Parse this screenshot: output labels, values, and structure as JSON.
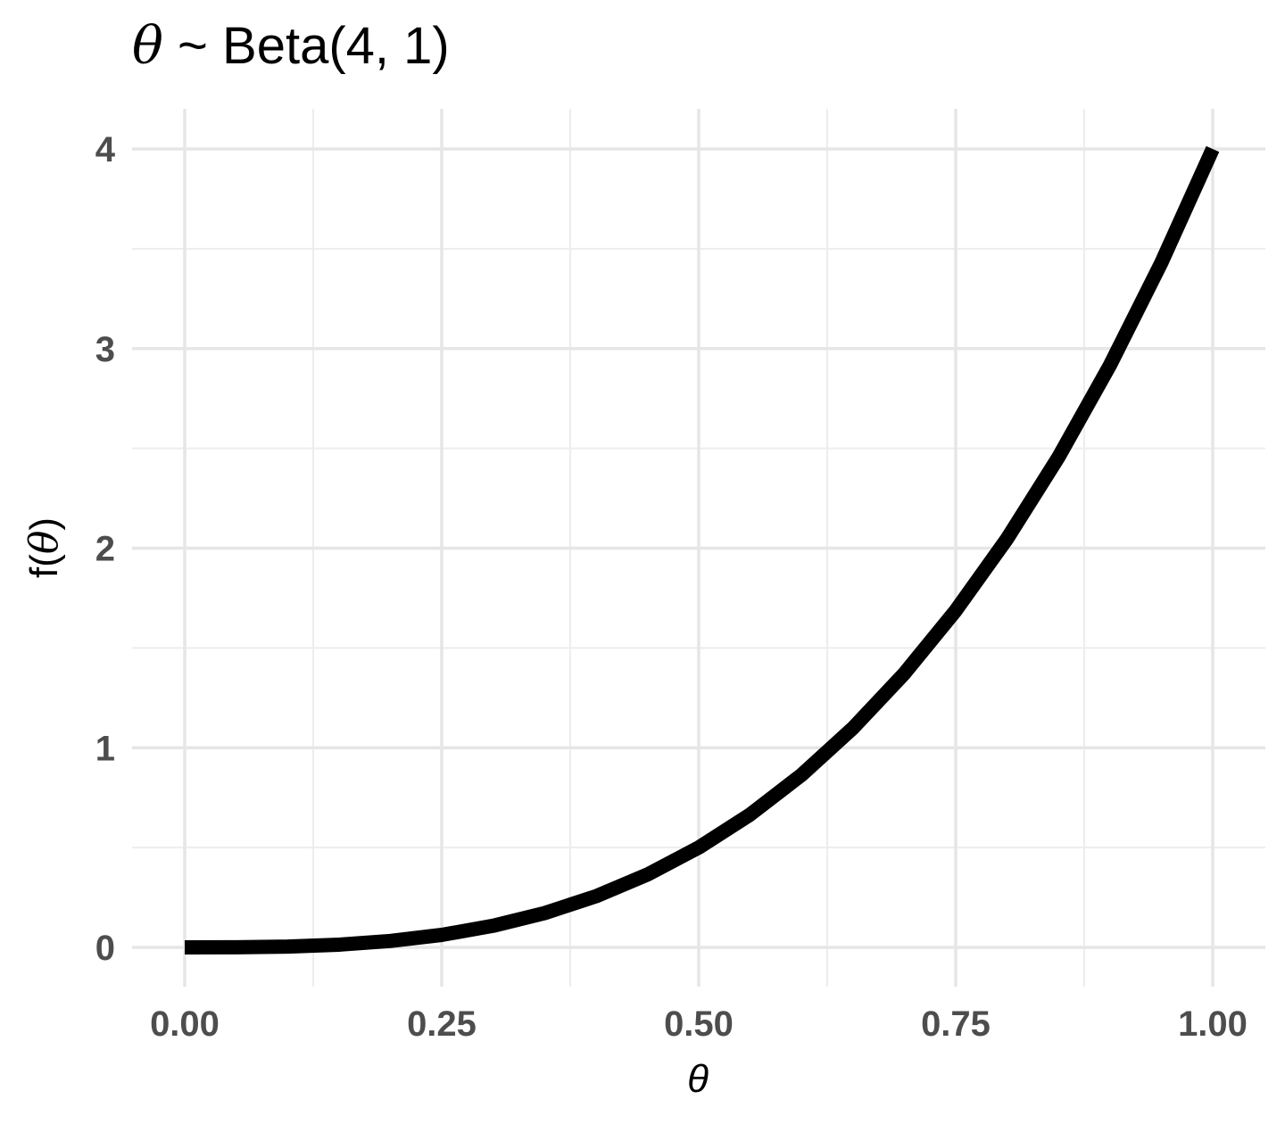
{
  "chart_data": {
    "type": "line",
    "title": {
      "symbol": "θ",
      "text": " ~ Beta(4, 1)"
    },
    "xlabel": "θ",
    "ylabel": {
      "prefix": "f(",
      "symbol": "θ",
      "suffix": ")"
    },
    "xlim": [
      0,
      1
    ],
    "ylim": [
      0,
      4
    ],
    "x_ticks": [
      "0.00",
      "0.25",
      "0.50",
      "0.75",
      "1.00"
    ],
    "y_ticks": [
      "0",
      "1",
      "2",
      "3",
      "4"
    ],
    "grid": true,
    "series": [
      {
        "line_color": "#000000",
        "x": [
          0,
          0.05,
          0.1,
          0.15,
          0.2,
          0.25,
          0.3,
          0.35,
          0.4,
          0.45,
          0.5,
          0.55,
          0.6,
          0.65,
          0.7,
          0.75,
          0.8,
          0.85,
          0.9,
          0.95,
          1
        ],
        "y": [
          0,
          0.0005,
          0.004,
          0.0135,
          0.032,
          0.0625,
          0.108,
          0.1715,
          0.256,
          0.3645,
          0.5,
          0.6655,
          0.864,
          1.0985,
          1.372,
          1.6875,
          2.048,
          2.4565,
          2.916,
          3.4295,
          4
        ]
      }
    ]
  }
}
